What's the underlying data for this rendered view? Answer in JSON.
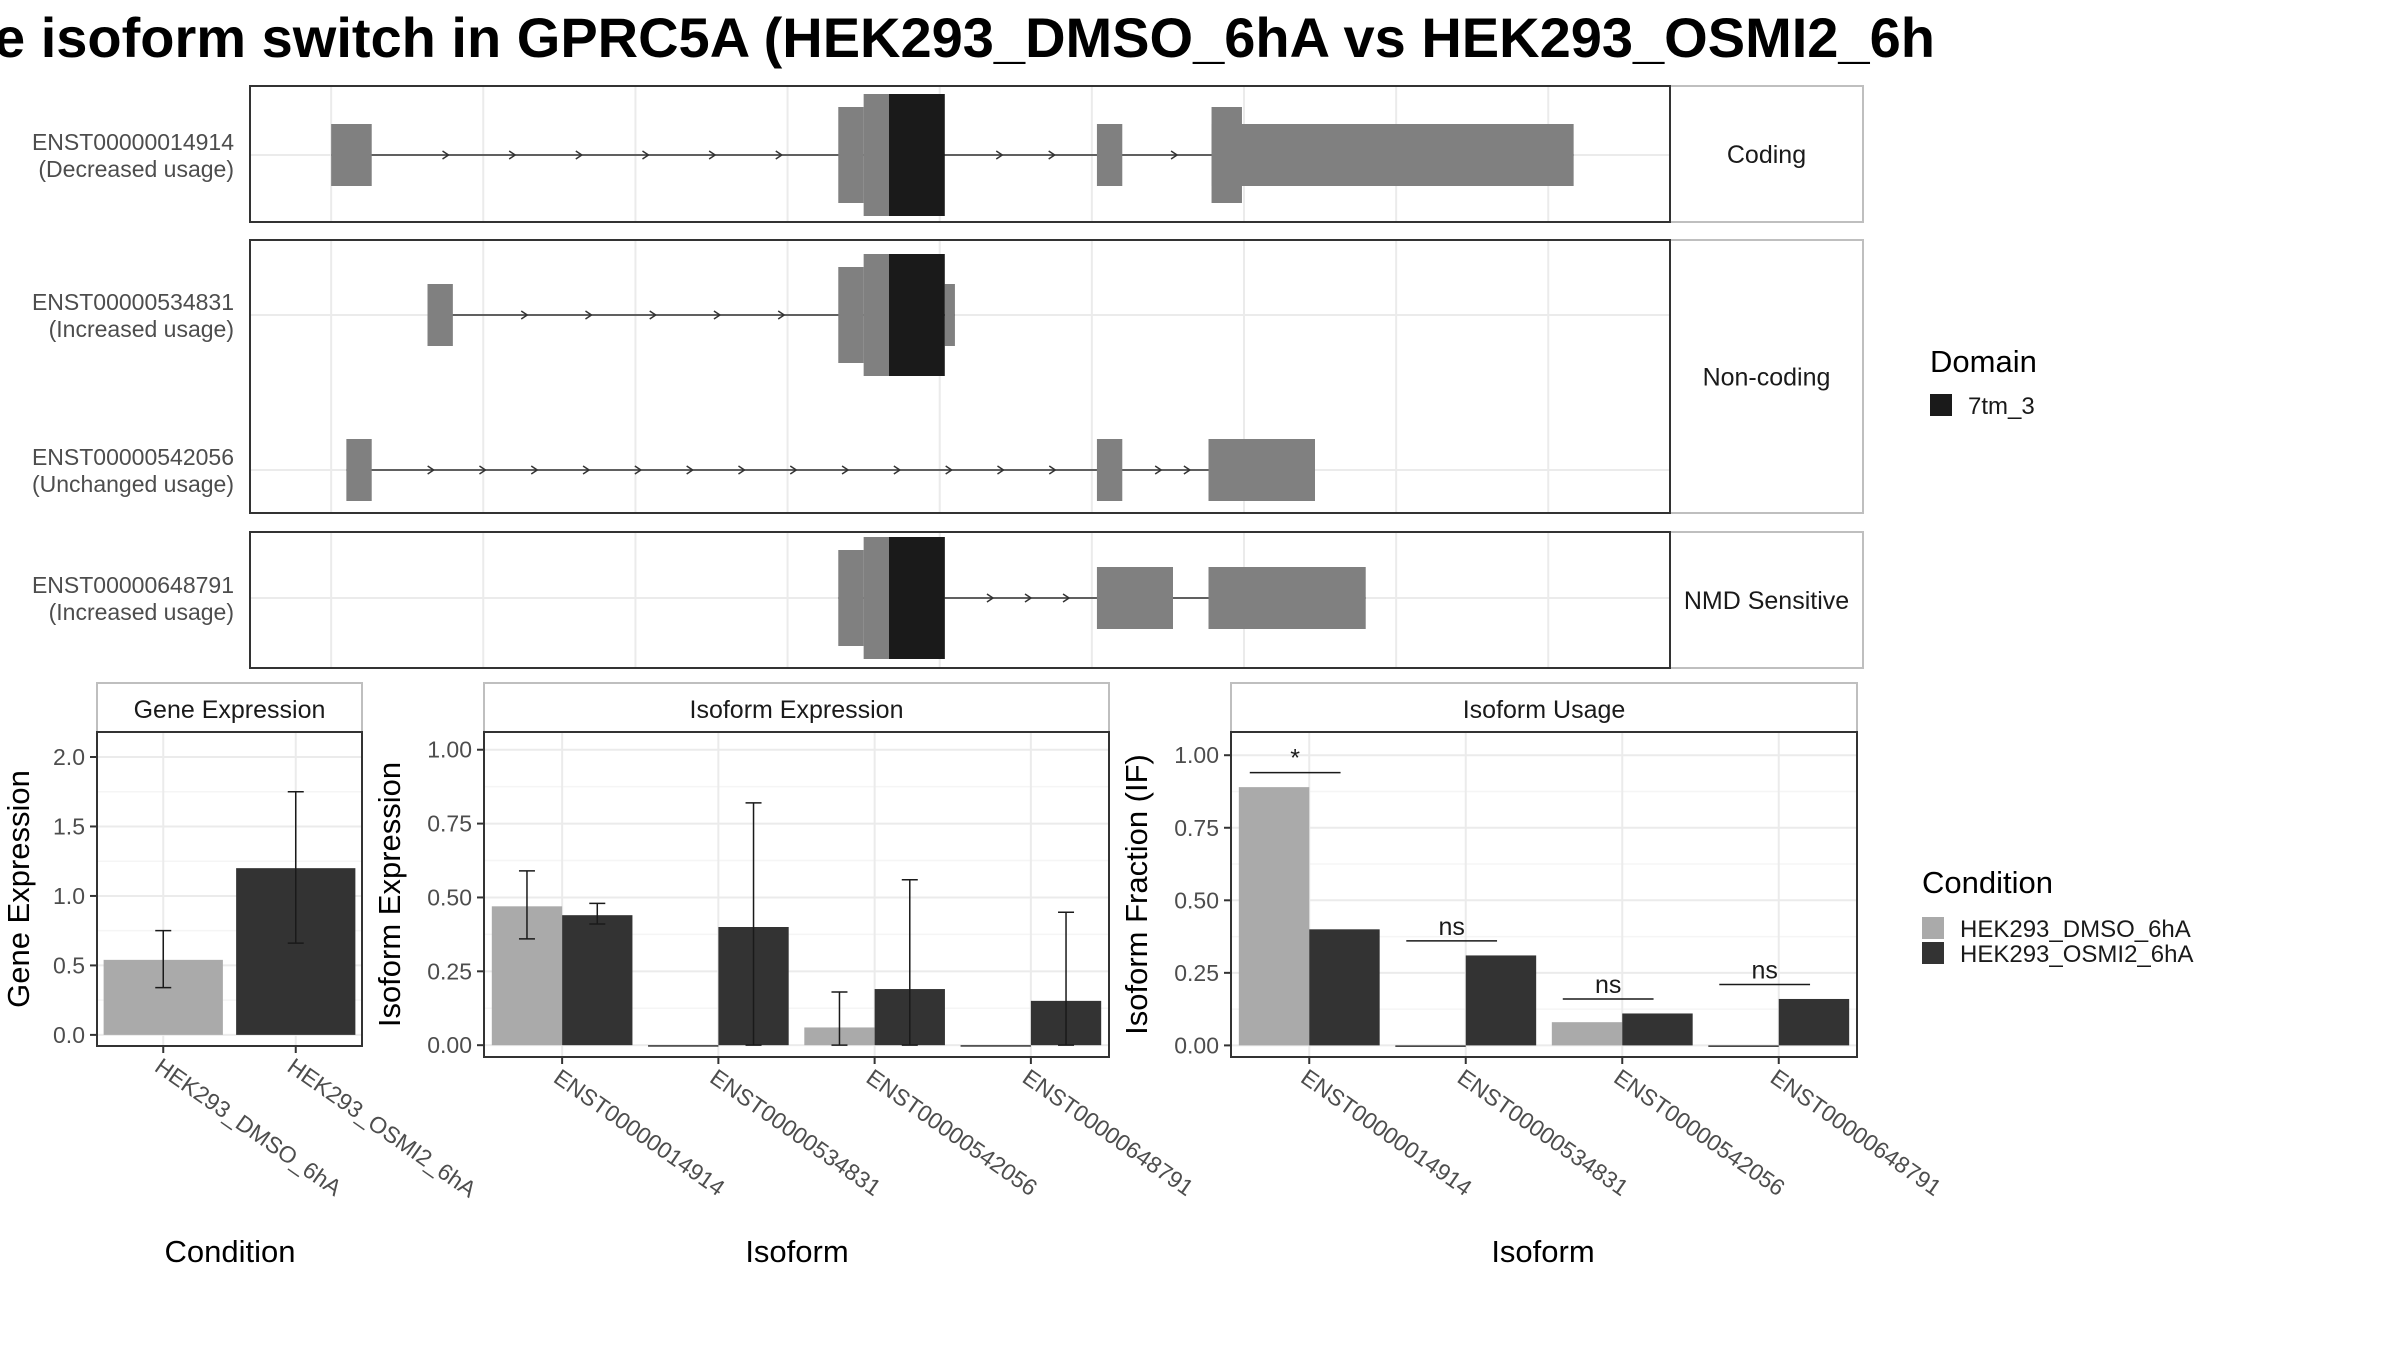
{
  "title": "e isoform switch in GPRC5A (HEK293_DMSO_6hA vs HEK293_OSMI2_6h",
  "colors": {
    "exon": "#808080",
    "domain": "#1a1a1a",
    "cond1": "#aaaaaa",
    "cond2": "#333333",
    "panel_border": "#333333",
    "strip_border": "#bfbfbf",
    "grid": "#ebebeb"
  },
  "structure": {
    "legend_title": "Domain",
    "legend_items": [
      {
        "name": "7tm_3",
        "color": "#1a1a1a"
      }
    ],
    "groups": [
      {
        "strip": "Coding",
        "isoforms": [
          {
            "id": "ENST00000014914",
            "usage": "(Decreased usage)",
            "exons": [
              [
                0.8,
                1.2
              ],
              [
                6.05,
                6.3
              ],
              [
                8.35,
                8.6
              ],
              [
                9.48,
                9.78
              ],
              [
                9.78,
                13.05
              ]
            ],
            "utr": [
              [
                5.8,
                6.05
              ],
              [
                6.3,
                6.8
              ],
              [
                9.48,
                9.78
              ]
            ],
            "domains": [
              [
                6.3,
                6.85
              ]
            ],
            "intron_arrows": 9
          }
        ]
      },
      {
        "strip": "Non-coding",
        "isoforms": [
          {
            "id": "ENST00000534831",
            "usage": "(Increased usage)",
            "exons": [
              [
                1.75,
                2.0
              ],
              [
                6.05,
                6.3
              ],
              [
                6.85,
                6.95
              ]
            ],
            "utr": [
              [
                5.8,
                6.05
              ]
            ],
            "domains": [
              [
                6.3,
                6.85
              ]
            ],
            "intron_arrows": 6
          },
          {
            "id": "ENST00000542056",
            "usage": "(Unchanged usage)",
            "exons": [
              [
                0.95,
                1.2
              ],
              [
                8.35,
                8.6
              ],
              [
                9.45,
                10.5
              ]
            ],
            "utr": [],
            "domains": [],
            "intron_arrows": 15
          }
        ]
      },
      {
        "strip": "NMD Sensitive",
        "isoforms": [
          {
            "id": "ENST00000648791",
            "usage": "(Increased usage)",
            "exons": [
              [
                6.05,
                6.3
              ],
              [
                6.85,
                6.8
              ],
              [
                8.35,
                8.75
              ],
              [
                8.75,
                9.1
              ],
              [
                9.45,
                11.0
              ]
            ],
            "utr": [
              [
                5.8,
                6.05
              ],
              [
                6.3,
                6.8
              ]
            ],
            "domains": [
              [
                6.3,
                6.85
              ]
            ],
            "intron_arrows": 3
          }
        ]
      }
    ]
  },
  "chart_data": [
    {
      "type": "bar",
      "title": "Gene Expression",
      "xlabel": "Condition",
      "ylabel": "Gene Expression",
      "categories": [
        "HEK293_DMSO_6hA",
        "HEK293_OSMI2_6hA"
      ],
      "values": [
        0.54,
        1.2
      ],
      "err_low": [
        0.34,
        0.66
      ],
      "err_high": [
        0.75,
        1.75
      ],
      "ylim": [
        -0.08,
        2.18
      ],
      "yticks": [
        0.0,
        0.5,
        1.0,
        1.5,
        2.0
      ],
      "ytick_labels": [
        "0.0",
        "0.5",
        "1.0",
        "1.5",
        "2.0"
      ]
    },
    {
      "type": "bar",
      "title": "Isoform Expression",
      "xlabel": "Isoform",
      "ylabel": "Isoform Expression",
      "categories": [
        "ENST00000014914",
        "ENST00000534831",
        "ENST00000542056",
        "ENST00000648791"
      ],
      "series": [
        {
          "name": "HEK293_DMSO_6hA",
          "values": [
            0.47,
            0.0,
            0.06,
            0.0
          ],
          "err_low": [
            0.36,
            0.0,
            0.0,
            0.0
          ],
          "err_high": [
            0.59,
            0.0,
            0.18,
            0.0
          ]
        },
        {
          "name": "HEK293_OSMI2_6hA",
          "values": [
            0.44,
            0.4,
            0.19,
            0.15
          ],
          "err_low": [
            0.41,
            0.0,
            0.0,
            0.0
          ],
          "err_high": [
            0.48,
            0.82,
            0.56,
            0.45
          ]
        }
      ],
      "ylim": [
        -0.04,
        1.06
      ],
      "yticks": [
        0.0,
        0.25,
        0.5,
        0.75,
        1.0
      ],
      "ytick_labels": [
        "0.00",
        "0.25",
        "0.50",
        "0.75",
        "1.00"
      ]
    },
    {
      "type": "bar",
      "title": "Isoform Usage",
      "xlabel": "Isoform",
      "ylabel": "Isoform Fraction (IF)",
      "categories": [
        "ENST00000014914",
        "ENST00000534831",
        "ENST00000542056",
        "ENST00000648791"
      ],
      "series": [
        {
          "name": "HEK293_DMSO_6hA",
          "values": [
            0.89,
            0.0,
            0.08,
            0.0
          ]
        },
        {
          "name": "HEK293_OSMI2_6hA",
          "values": [
            0.4,
            0.31,
            0.11,
            0.16
          ]
        }
      ],
      "significance": [
        "*",
        "ns",
        "ns",
        "ns"
      ],
      "sig_level": [
        0.94,
        0.36,
        0.16,
        0.21
      ],
      "ylim": [
        -0.04,
        1.08
      ],
      "yticks": [
        0.0,
        0.25,
        0.5,
        0.75,
        1.0
      ],
      "ytick_labels": [
        "0.00",
        "0.25",
        "0.50",
        "0.75",
        "1.00"
      ],
      "legend_title": "Condition",
      "legend_placement": "right"
    }
  ]
}
